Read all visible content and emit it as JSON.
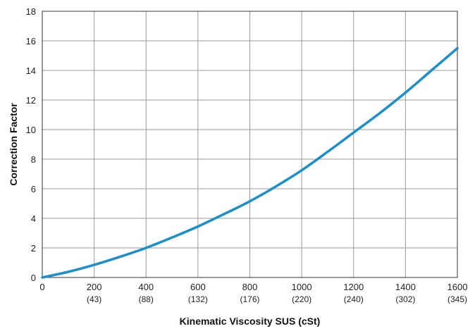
{
  "chart_data": {
    "type": "line",
    "xlabel": "Kinematic Viscosity SUS (cSt)",
    "ylabel": "Correction Factor",
    "xlim": [
      0,
      1600
    ],
    "ylim": [
      0,
      18
    ],
    "x_ticks": [
      0,
      200,
      400,
      600,
      800,
      1000,
      1200,
      1400,
      1600
    ],
    "x_tick_labels": [
      "0",
      "200",
      "400",
      "600",
      "800",
      "1000",
      "1200",
      "1400",
      "1600"
    ],
    "x_tick_sublabels": [
      "",
      "(43)",
      "(88)",
      "(132)",
      "(176)",
      "(220)",
      "(240)",
      "(302)",
      "(345)"
    ],
    "y_ticks": [
      0,
      2,
      4,
      6,
      8,
      10,
      12,
      14,
      16,
      18
    ],
    "y_tick_labels": [
      "0",
      "2",
      "4",
      "6",
      "8",
      "10",
      "12",
      "14",
      "16",
      "18"
    ],
    "grid": true,
    "series": [
      {
        "color": "#1a8fc9",
        "x": [
          0,
          100,
          200,
          300,
          400,
          500,
          600,
          700,
          800,
          900,
          1000,
          1100,
          1200,
          1300,
          1400,
          1500,
          1600
        ],
        "y": [
          0,
          0.38,
          0.85,
          1.4,
          2.0,
          2.7,
          3.45,
          4.28,
          5.15,
          6.15,
          7.25,
          8.5,
          9.8,
          11.1,
          12.5,
          14.0,
          15.5
        ]
      }
    ]
  }
}
